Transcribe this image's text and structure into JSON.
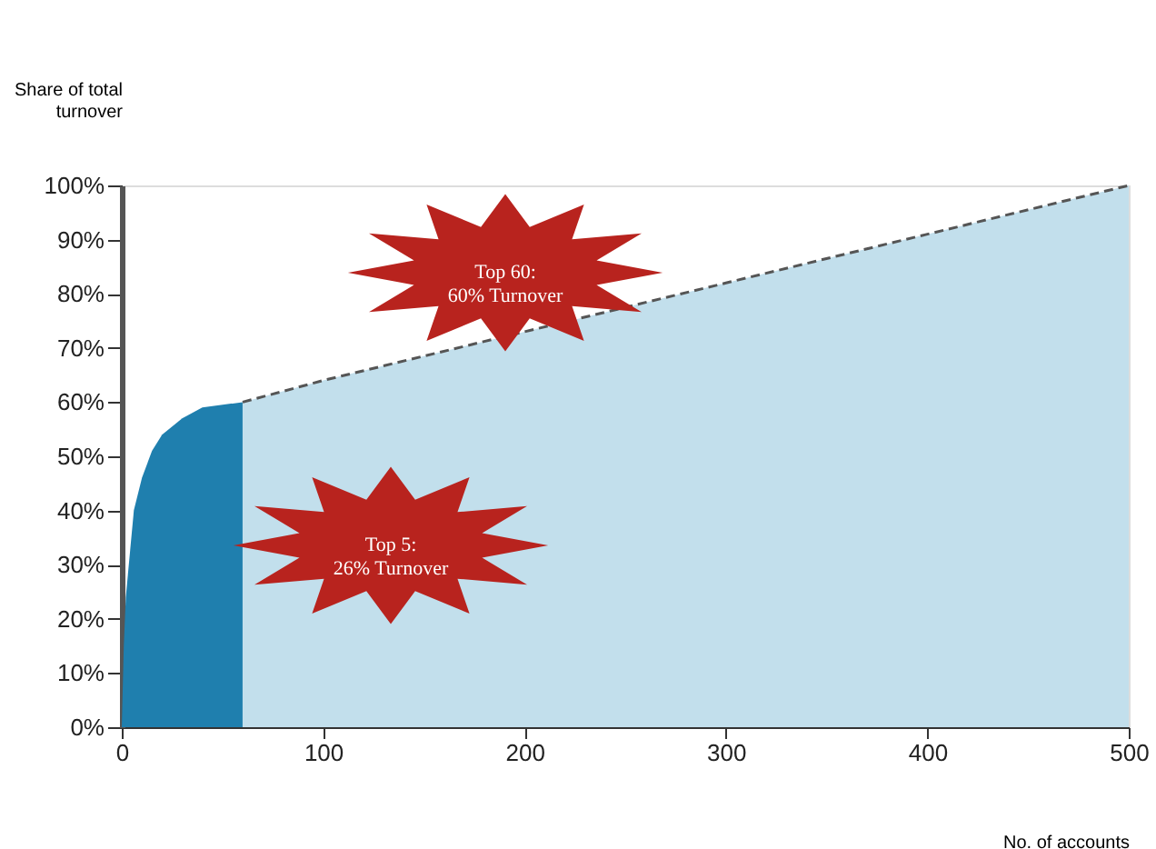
{
  "chart_data": {
    "type": "area",
    "ylabel": "Share of total\nturnover",
    "xlabel": "No. of accounts",
    "xlim": [
      0,
      500
    ],
    "xticks": [
      0,
      100,
      200,
      300,
      400,
      500
    ],
    "ylim": [
      0,
      100
    ],
    "yticks": [
      {
        "value": 0,
        "label": "0%"
      },
      {
        "value": 10,
        "label": "10%"
      },
      {
        "value": 20,
        "label": "20%"
      },
      {
        "value": 30,
        "label": "30%"
      },
      {
        "value": 40,
        "label": "40%"
      },
      {
        "value": 50,
        "label": "50%"
      },
      {
        "value": 60,
        "label": "60%"
      },
      {
        "value": 70,
        "label": "70%"
      },
      {
        "value": 80,
        "label": "80%"
      },
      {
        "value": 90,
        "label": "90%"
      },
      {
        "value": 100,
        "label": "100%"
      }
    ],
    "series": [
      {
        "color": "#1f7fae",
        "x": [
          0,
          1,
          2,
          4,
          6,
          10,
          15,
          20,
          30,
          40,
          60
        ],
        "values": [
          0,
          15,
          24,
          32,
          40,
          46,
          51,
          54,
          57,
          59,
          60
        ]
      },
      {
        "color": "#c2dfec",
        "line_style": "dashed",
        "x": [
          60,
          100,
          200,
          300,
          400,
          500
        ],
        "values": [
          60,
          64,
          73,
          82,
          91,
          100
        ]
      }
    ],
    "annotations": [
      "Top 60:\n60% Turnover",
      "Top 5:\n26% Turnover"
    ]
  }
}
